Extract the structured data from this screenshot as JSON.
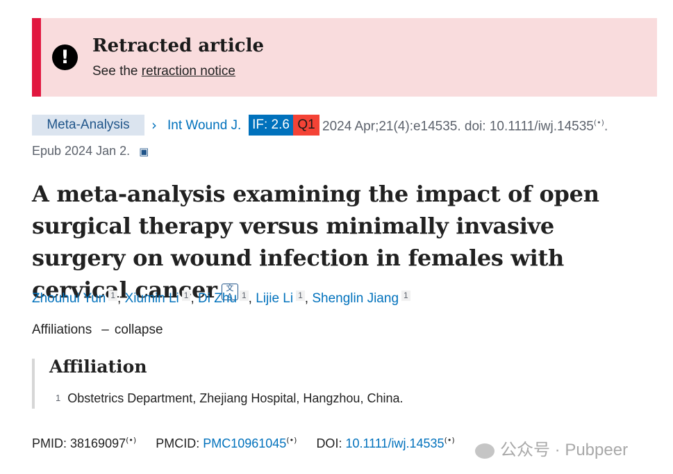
{
  "banner": {
    "title": "Retracted article",
    "prefix": "See the",
    "link": "retraction notice",
    "icon": "exclamation-circle-icon"
  },
  "citation": {
    "tag": "Meta-Analysis",
    "journal": "Int Wound J.",
    "impact_factor": "IF: 2.6",
    "quartile": "Q1",
    "details": "2024 Apr;21(4):e14535. doi: 10.1111/iwj.14535",
    "trailing": ".",
    "epub": "Epub 2024 Jan 2."
  },
  "title": "A meta-analysis examining the impact of open surgical therapy versus minimally invasive surgery on wound infection in females with cervical cancer",
  "authors": [
    {
      "name": "Zhouhui Yun",
      "aff": "1"
    },
    {
      "name": "Xiumin Li",
      "aff": "1"
    },
    {
      "name": "Di Zhu",
      "aff": "1"
    },
    {
      "name": "Lijie Li",
      "aff": "1"
    },
    {
      "name": "Shenglin Jiang",
      "aff": "1"
    }
  ],
  "affiliations_toggle": {
    "label": "Affiliations",
    "dash": "–",
    "action": "collapse"
  },
  "affiliation_section": {
    "heading": "Affiliation",
    "items": [
      {
        "num": "1",
        "text": "Obstetrics Department, Zhejiang Hospital, Hangzhou, China."
      }
    ]
  },
  "identifiers": {
    "pmid_label": "PMID: ",
    "pmid": "38169097",
    "pmcid_label": "PMCID: ",
    "pmcid": "PMC10961045",
    "doi_label": "DOI: ",
    "doi": "10.1111/iwj.14535"
  },
  "watermark": "公众号 · Pubpeer",
  "colors": {
    "banner_bg": "#f9dcdd",
    "banner_border": "#e1173f",
    "link": "#0071bc",
    "if_badge": "#0071bc",
    "q_badge": "#f44336"
  }
}
